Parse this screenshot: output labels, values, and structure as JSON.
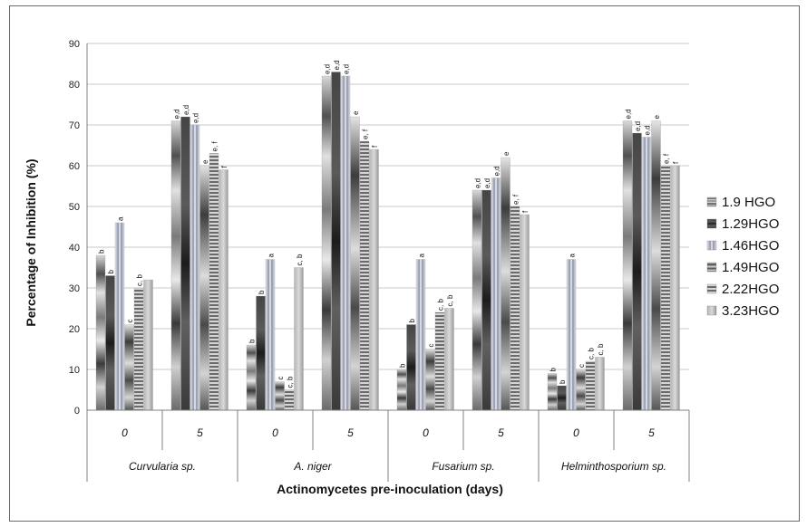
{
  "chart_data": {
    "type": "bar",
    "title": "",
    "xlabel": "Actinomycetes pre-inoculation (days)",
    "ylabel": "Percentage of Inhibition (%)",
    "ylim": [
      0,
      90
    ],
    "yticks": [
      0,
      10,
      20,
      30,
      40,
      50,
      60,
      70,
      80,
      90
    ],
    "grid": true,
    "legend_position": "right",
    "groups": [
      "Curvularia sp.",
      "A. niger",
      "Fusarium sp.",
      "Helminthosporium sp."
    ],
    "subcategories": [
      "0",
      "5"
    ],
    "categories": [
      "Curvularia sp. / 0",
      "Curvularia sp. / 5",
      "A. niger / 0",
      "A. niger / 5",
      "Fusarium sp. / 0",
      "Fusarium sp. / 5",
      "Helminthosporium sp. / 0",
      "Helminthosporium sp. / 5"
    ],
    "series": [
      {
        "name": "1.9 HGO",
        "values": [
          38,
          71,
          16,
          82,
          10,
          54,
          9,
          71
        ],
        "labels": [
          "b",
          "e,d",
          "b",
          "e,d",
          "b",
          "e,d",
          "b",
          "e,d"
        ]
      },
      {
        "name": "1.29HGO",
        "values": [
          33,
          72,
          28,
          83,
          21,
          54,
          6,
          68
        ],
        "labels": [
          "b",
          "e,d",
          "b",
          "e,d",
          "b",
          "e,d",
          "b",
          "e,d"
        ]
      },
      {
        "name": "1.46HGO",
        "values": [
          46,
          70,
          37,
          82,
          37,
          57,
          37,
          67
        ],
        "labels": [
          "a",
          "e,d",
          "a",
          "e,d",
          "a",
          "e,d",
          "a",
          "e,d"
        ]
      },
      {
        "name": "1.49HGO",
        "values": [
          21,
          60,
          7,
          72,
          15,
          62,
          10,
          71
        ],
        "labels": [
          "c",
          "e",
          "c",
          "e",
          "c",
          "e",
          "c",
          "e"
        ]
      },
      {
        "name": "2.22HGO",
        "values": [
          30,
          63,
          5,
          66,
          24,
          50,
          12,
          60
        ],
        "labels": [
          "c, b",
          "e, f",
          "c, b",
          "e, f",
          "c, b",
          "e, f",
          "c, b",
          "e, f"
        ]
      },
      {
        "name": "3.23HGO",
        "values": [
          32,
          59,
          35,
          64,
          25,
          48,
          13,
          60
        ],
        "labels": [
          "",
          "f",
          "c, b",
          "f",
          "c, b",
          "f",
          "c, b",
          "f"
        ]
      }
    ]
  },
  "legend": {
    "items": [
      "1.9 HGO",
      "1.29HGO",
      "1.46HGO",
      "1.49HGO",
      "2.22HGO",
      "3.23HGO"
    ]
  },
  "colors": {
    "s0": "#a8a8a8",
    "s1": "#555555",
    "s2": "#b9bfd0",
    "s3": "#6e6e6e",
    "s4": "#8a8a8a",
    "s5": "#a0a0a0",
    "grid": "#c8c8c8",
    "axis": "#808080"
  }
}
